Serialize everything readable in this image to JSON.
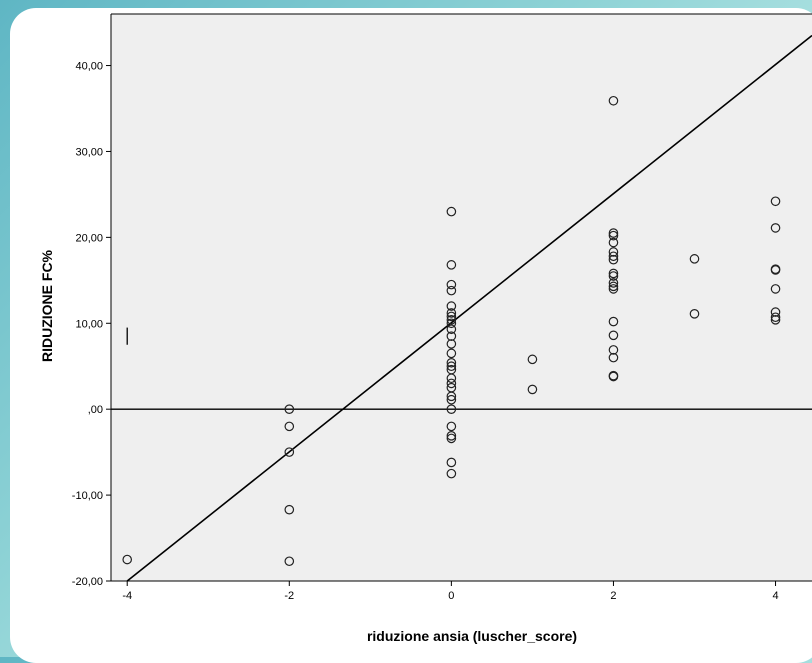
{
  "chart_data": {
    "type": "scatter",
    "xlabel": "riduzione ansia (luscher_score)",
    "ylabel": "RIDUZIONE FC%",
    "xlim": [
      -4.2,
      4.45
    ],
    "ylim": [
      -20,
      46
    ],
    "x_ticks": [
      -4,
      -2,
      0,
      2,
      4
    ],
    "x_tick_labels": [
      "-4",
      "-2",
      "0",
      "2",
      "4"
    ],
    "y_ticks": [
      -20,
      -10,
      0,
      10,
      20,
      30,
      40
    ],
    "y_tick_labels": [
      "-20,00",
      "-10,00",
      ",00",
      "10,00",
      "20,00",
      "30,00",
      "40,00"
    ],
    "grid": false,
    "reference_line_y": 0,
    "fit_line": {
      "points": [
        [
          -4,
          -20
        ],
        [
          4.45,
          43.5
        ]
      ]
    },
    "marker_bar": {
      "x": -4,
      "y": [
        7.5,
        9.5
      ]
    },
    "points": [
      [
        -4,
        -17.5
      ],
      [
        -2,
        0
      ],
      [
        -2,
        -2
      ],
      [
        -2,
        -5
      ],
      [
        -2,
        -11.7
      ],
      [
        -2,
        -17.7
      ],
      [
        0,
        23
      ],
      [
        0,
        16.8
      ],
      [
        0,
        14.5
      ],
      [
        0,
        13.8
      ],
      [
        0,
        12
      ],
      [
        0,
        11.2
      ],
      [
        0,
        10.8
      ],
      [
        0,
        10.4
      ],
      [
        0,
        10
      ],
      [
        0,
        9.3
      ],
      [
        0,
        8.5
      ],
      [
        0,
        7.6
      ],
      [
        0,
        6.5
      ],
      [
        0,
        5.4
      ],
      [
        0,
        5
      ],
      [
        0,
        4.6
      ],
      [
        0,
        3.6
      ],
      [
        0,
        3
      ],
      [
        0,
        2.5
      ],
      [
        0,
        1.5
      ],
      [
        0,
        1.1
      ],
      [
        0,
        0
      ],
      [
        0,
        -2
      ],
      [
        0,
        -3.1
      ],
      [
        0,
        -3.4
      ],
      [
        0,
        -6.2
      ],
      [
        0,
        -7.5
      ],
      [
        1,
        5.8
      ],
      [
        1,
        2.3
      ],
      [
        2,
        35.9
      ],
      [
        2,
        20.5
      ],
      [
        2,
        20.2
      ],
      [
        2,
        19.4
      ],
      [
        2,
        18.3
      ],
      [
        2,
        17.8
      ],
      [
        2,
        17.4
      ],
      [
        2,
        15.8
      ],
      [
        2,
        15.5
      ],
      [
        2,
        14.7
      ],
      [
        2,
        14.3
      ],
      [
        2,
        14
      ],
      [
        2,
        10.2
      ],
      [
        2,
        8.6
      ],
      [
        2,
        6.9
      ],
      [
        2,
        6
      ],
      [
        2,
        3.9
      ],
      [
        2,
        3.8
      ],
      [
        3,
        17.5
      ],
      [
        3,
        11.1
      ],
      [
        4,
        24.2
      ],
      [
        4,
        21.1
      ],
      [
        4,
        16.3
      ],
      [
        4,
        16.2
      ],
      [
        4,
        14
      ],
      [
        4,
        11.3
      ],
      [
        4,
        10.7
      ],
      [
        4,
        10.4
      ]
    ]
  }
}
